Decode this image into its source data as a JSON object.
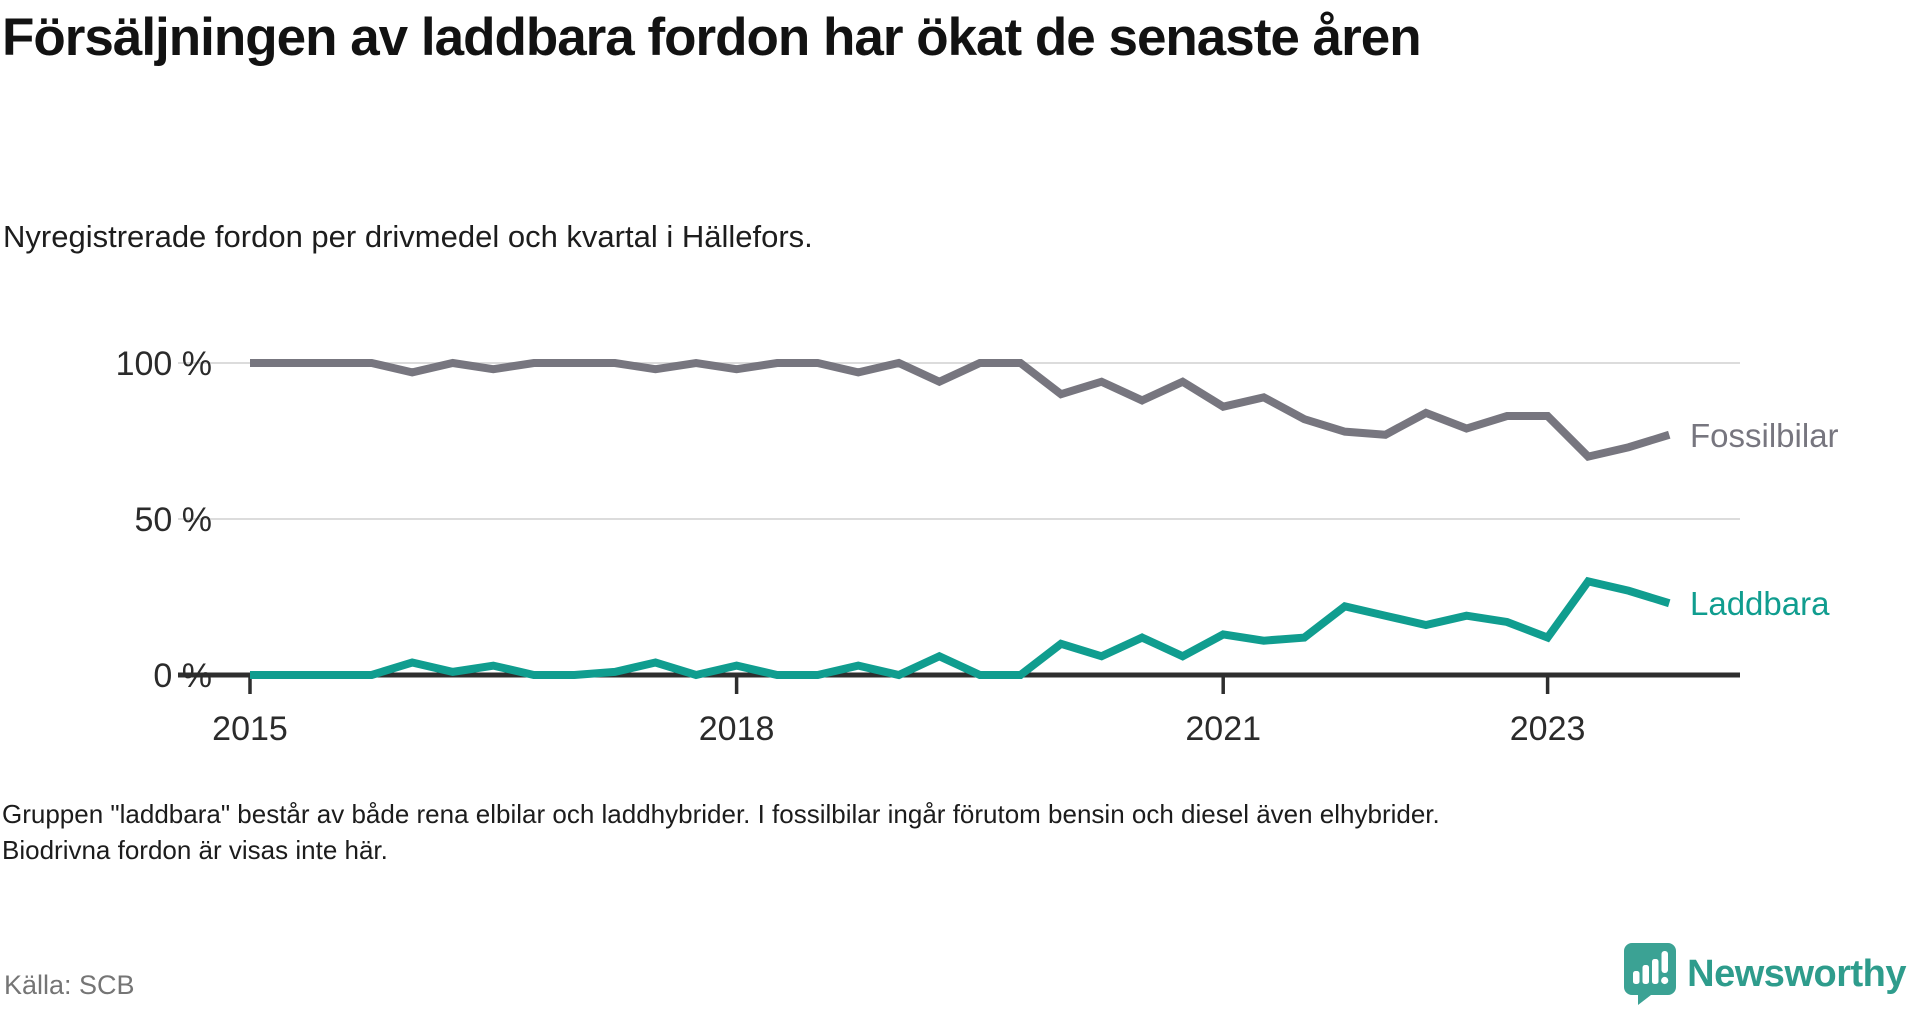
{
  "header": {
    "title": "Försäljningen av laddbara fordon har ökat de senaste åren",
    "subtitle": "Nyregistrerade fordon per drivmedel och kvartal i Hällefors."
  },
  "chart_data": {
    "type": "line",
    "title": "Försäljningen av laddbara fordon har ökat de senaste åren",
    "subtitle": "Nyregistrerade fordon per drivmedel och kvartal i Hällefors.",
    "x_unit": "quarter",
    "categories": [
      "2015 Q1",
      "2015 Q2",
      "2015 Q3",
      "2015 Q4",
      "2016 Q1",
      "2016 Q2",
      "2016 Q3",
      "2016 Q4",
      "2017 Q1",
      "2017 Q2",
      "2017 Q3",
      "2017 Q4",
      "2018 Q1",
      "2018 Q2",
      "2018 Q3",
      "2018 Q4",
      "2019 Q1",
      "2019 Q2",
      "2019 Q3",
      "2019 Q4",
      "2020 Q1",
      "2020 Q2",
      "2020 Q3",
      "2020 Q4",
      "2021 Q1",
      "2021 Q2",
      "2021 Q3",
      "2021 Q4",
      "2022 Q1",
      "2022 Q2",
      "2022 Q3",
      "2022 Q4",
      "2023 Q1",
      "2023 Q2",
      "2023 Q3",
      "2023 Q4"
    ],
    "series": [
      {
        "name": "Fossilbilar",
        "color": "#77767F",
        "unit": "%",
        "values": [
          100,
          100,
          100,
          100,
          97,
          100,
          98,
          100,
          100,
          100,
          98,
          100,
          98,
          100,
          100,
          97,
          100,
          94,
          100,
          100,
          90,
          94,
          88,
          94,
          86,
          89,
          82,
          78,
          77,
          84,
          79,
          83,
          83,
          70,
          73,
          77
        ]
      },
      {
        "name": "Laddbara",
        "color": "#109D8F",
        "unit": "%",
        "values": [
          0,
          0,
          0,
          0,
          4,
          1,
          3,
          0,
          0,
          1,
          4,
          0,
          3,
          0,
          0,
          3,
          0,
          6,
          0,
          0,
          10,
          6,
          12,
          6,
          13,
          11,
          12,
          22,
          19,
          16,
          19,
          17,
          12,
          30,
          27,
          23
        ]
      }
    ],
    "ylim": [
      0,
      100
    ],
    "yticks": [
      {
        "value": 100,
        "label": "100 %"
      },
      {
        "value": 50,
        "label": "50 %"
      },
      {
        "value": 0,
        "label": "0 %"
      }
    ],
    "xticks": [
      {
        "index": 0,
        "label": "2015"
      },
      {
        "index": 12,
        "label": "2018"
      },
      {
        "index": 24,
        "label": "2021"
      },
      {
        "index": 32,
        "label": "2023"
      }
    ],
    "grid": "horizontal",
    "legend_position": "right-of-line-ends"
  },
  "footnote": {
    "text": "Gruppen \"laddbara\" består av både rena elbilar och laddhybrider. I fossilbilar ingår förutom bensin och diesel även elhybrider. Biodrivna fordon är visas inte här."
  },
  "source": {
    "label": "Källa: SCB"
  },
  "logo": {
    "brand": "Newsworthy",
    "icon": "newsworthy-bubble-chart-icon",
    "bubble_color": "#3BA294",
    "word_color": "#2E9C8C"
  }
}
